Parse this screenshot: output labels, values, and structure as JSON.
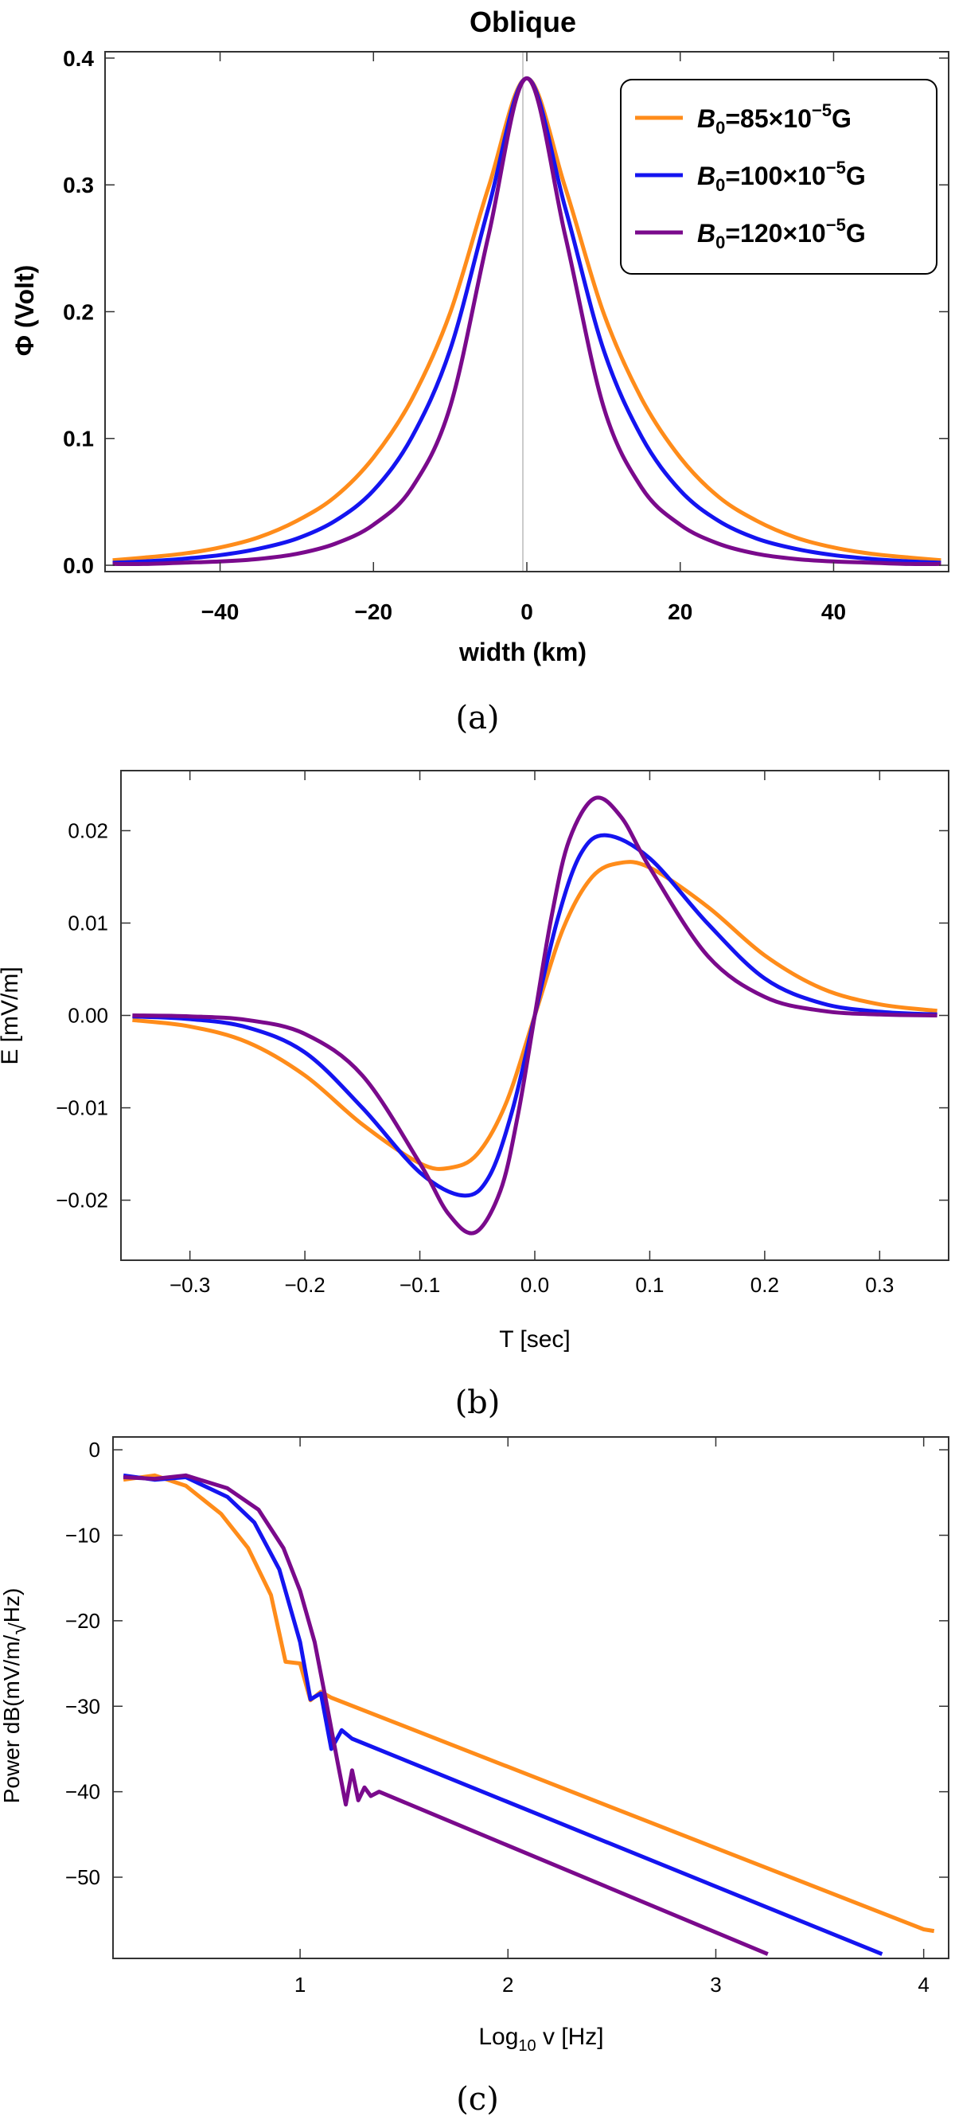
{
  "colors": {
    "orange": "#ff8c1a",
    "blue": "#1414f0",
    "purple": "#7a0a8c"
  },
  "chart_data": [
    {
      "type": "line",
      "title": "Oblique",
      "xlabel": "width (km)",
      "ylabel": "Φ (Volt)",
      "xlim": [
        -55,
        55
      ],
      "ylim": [
        -0.005,
        0.405
      ],
      "xticks": [
        -40,
        -20,
        0,
        20,
        40
      ],
      "xtick_labels": [
        "−40",
        "−20",
        "0",
        "20",
        "40"
      ],
      "yticks": [
        0.0,
        0.1,
        0.2,
        0.3,
        0.4
      ],
      "ytick_labels": [
        "0.0",
        "0.1",
        "0.2",
        "0.3",
        "0.4"
      ],
      "legend_position": "top-right",
      "caption": "(a)",
      "series": [
        {
          "name": "85",
          "color": "orange",
          "x": [
            -54,
            -50,
            -45,
            -40,
            -35,
            -30,
            -25,
            -20,
            -15,
            -10,
            -5,
            0,
            5,
            10,
            15,
            20,
            25,
            30,
            35,
            40,
            45,
            50,
            54
          ],
          "y": [
            0.004,
            0.006,
            0.009,
            0.014,
            0.022,
            0.035,
            0.054,
            0.085,
            0.131,
            0.199,
            0.298,
            0.384,
            0.298,
            0.199,
            0.131,
            0.085,
            0.054,
            0.035,
            0.022,
            0.014,
            0.009,
            0.006,
            0.004
          ]
        },
        {
          "name": "100",
          "color": "blue",
          "x": [
            -54,
            -50,
            -45,
            -40,
            -35,
            -30,
            -25,
            -20,
            -15,
            -10,
            -5,
            0,
            5,
            10,
            15,
            20,
            25,
            30,
            35,
            40,
            45,
            50,
            54
          ],
          "y": [
            0.002,
            0.003,
            0.005,
            0.008,
            0.013,
            0.021,
            0.035,
            0.059,
            0.101,
            0.17,
            0.282,
            0.384,
            0.282,
            0.17,
            0.101,
            0.059,
            0.035,
            0.021,
            0.013,
            0.008,
            0.005,
            0.003,
            0.002
          ]
        },
        {
          "name": "120",
          "color": "purple",
          "x": [
            -54,
            -50,
            -45,
            -40,
            -35,
            -30,
            -25,
            -20,
            -15,
            -10,
            -5,
            0,
            5,
            10,
            15,
            20,
            25,
            30,
            35,
            40,
            45,
            50,
            54
          ],
          "y": [
            0.001,
            0.001,
            0.002,
            0.003,
            0.005,
            0.009,
            0.017,
            0.032,
            0.061,
            0.125,
            0.26,
            0.384,
            0.26,
            0.125,
            0.061,
            0.032,
            0.017,
            0.009,
            0.005,
            0.003,
            0.002,
            0.001,
            0.001
          ]
        }
      ],
      "legend_entries": [
        {
          "label_main": "B",
          "label_sub": "0",
          "label_mid": "=85×10",
          "label_sup": "−5",
          "label_end": "G",
          "color": "orange"
        },
        {
          "label_main": "B",
          "label_sub": "0",
          "label_mid": "=100×10",
          "label_sup": "−5",
          "label_end": "G",
          "color": "blue"
        },
        {
          "label_main": "B",
          "label_sub": "0",
          "label_mid": "=120×10",
          "label_sup": "−5",
          "label_end": "G",
          "color": "purple"
        }
      ]
    },
    {
      "type": "line",
      "xlabel": "T [sec]",
      "ylabel": "E [mV/m]",
      "xlim": [
        -0.36,
        0.36
      ],
      "ylim": [
        -0.0265,
        0.0265
      ],
      "xticks": [
        -0.3,
        -0.2,
        -0.1,
        0.0,
        0.1,
        0.2,
        0.3
      ],
      "xtick_labels": [
        "−0.3",
        "−0.2",
        "−0.1",
        "0.0",
        "0.1",
        "0.2",
        "0.3"
      ],
      "yticks": [
        -0.02,
        -0.01,
        0.0,
        0.01,
        0.02
      ],
      "ytick_labels": [
        "−0.02",
        "−0.01",
        "0.00",
        "0.01",
        "0.02"
      ],
      "caption": "(b)",
      "series": [
        {
          "name": "85",
          "color": "orange",
          "x": [
            -0.35,
            -0.3,
            -0.25,
            -0.2,
            -0.15,
            -0.1,
            -0.074,
            -0.05,
            -0.025,
            0,
            0.025,
            0.05,
            0.074,
            0.1,
            0.15,
            0.2,
            0.25,
            0.3,
            0.35
          ],
          "y": [
            -0.0005,
            -0.0012,
            -0.0029,
            -0.0065,
            -0.0118,
            -0.016,
            -0.0165,
            -0.015,
            -0.0095,
            0,
            0.0095,
            0.015,
            0.0165,
            0.016,
            0.0118,
            0.0065,
            0.0029,
            0.0012,
            0.0005
          ]
        },
        {
          "name": "100",
          "color": "blue",
          "x": [
            -0.35,
            -0.3,
            -0.25,
            -0.2,
            -0.15,
            -0.1,
            -0.062,
            -0.04,
            -0.02,
            0,
            0.02,
            0.04,
            0.062,
            0.1,
            0.15,
            0.2,
            0.25,
            0.3,
            0.35
          ],
          "y": [
            -0.0001,
            -0.0004,
            -0.0013,
            -0.004,
            -0.01,
            -0.017,
            -0.0195,
            -0.0175,
            -0.0105,
            0,
            0.0105,
            0.0175,
            0.0195,
            0.017,
            0.01,
            0.004,
            0.0013,
            0.0004,
            0.0001
          ]
        },
        {
          "name": "120",
          "color": "purple",
          "x": [
            -0.35,
            -0.3,
            -0.25,
            -0.2,
            -0.15,
            -0.1,
            -0.075,
            -0.052,
            -0.03,
            -0.015,
            0,
            0.015,
            0.03,
            0.052,
            0.075,
            0.1,
            0.15,
            0.2,
            0.25,
            0.3,
            0.35
          ],
          "y": [
            0,
            -0.0001,
            -0.0005,
            -0.002,
            -0.0065,
            -0.016,
            -0.0215,
            -0.0235,
            -0.019,
            -0.011,
            0,
            0.011,
            0.019,
            0.0235,
            0.0215,
            0.016,
            0.0065,
            0.002,
            0.0005,
            0.0001,
            0
          ]
        }
      ]
    },
    {
      "type": "line",
      "xlabel_main": "Log",
      "xlabel_sub": "10",
      "xlabel_end": " v [Hz]",
      "ylabel_main": "Power dB(mV/m/",
      "ylabel_sqrt": "√",
      "ylabel_end": "Hz)",
      "xlim": [
        0.1,
        4.12
      ],
      "ylim": [
        -59.5,
        1.5
      ],
      "xticks": [
        1,
        2,
        3,
        4
      ],
      "xtick_labels": [
        "1",
        "2",
        "3",
        "4"
      ],
      "yticks": [
        0,
        -10,
        -20,
        -30,
        -40,
        -50
      ],
      "ytick_labels": [
        "0",
        "−10",
        "−20",
        "−30",
        "−40",
        "−50"
      ],
      "caption": "(c)",
      "series": [
        {
          "name": "85",
          "color": "orange",
          "x": [
            0.15,
            0.3,
            0.45,
            0.62,
            0.75,
            0.86,
            0.93,
            1.0,
            1.05,
            1.1,
            1.15,
            4.0,
            4.05
          ],
          "y": [
            -3.5,
            -3.0,
            -4.2,
            -7.5,
            -11.5,
            -17.0,
            -24.8,
            -25.0,
            -29.3,
            -28.3,
            -29.0,
            -56.1,
            -56.3
          ]
        },
        {
          "name": "100",
          "color": "blue",
          "x": [
            0.15,
            0.3,
            0.45,
            0.65,
            0.78,
            0.9,
            1.0,
            1.05,
            1.1,
            1.15,
            1.2,
            1.25,
            3.8
          ],
          "y": [
            -3.0,
            -3.5,
            -3.2,
            -5.5,
            -8.5,
            -14.0,
            -22.5,
            -29.2,
            -28.5,
            -35.0,
            -32.8,
            -33.8,
            -59.0
          ]
        },
        {
          "name": "120",
          "color": "purple",
          "x": [
            0.15,
            0.3,
            0.45,
            0.65,
            0.8,
            0.92,
            1.0,
            1.07,
            1.13,
            1.18,
            1.22,
            1.25,
            1.28,
            1.31,
            1.34,
            1.38,
            3.25
          ],
          "y": [
            -3.2,
            -3.4,
            -3.0,
            -4.5,
            -7.0,
            -11.5,
            -16.5,
            -22.5,
            -30.0,
            -36.5,
            -41.5,
            -37.5,
            -41.0,
            -39.5,
            -40.5,
            -40.0,
            -59.0
          ]
        }
      ]
    }
  ]
}
